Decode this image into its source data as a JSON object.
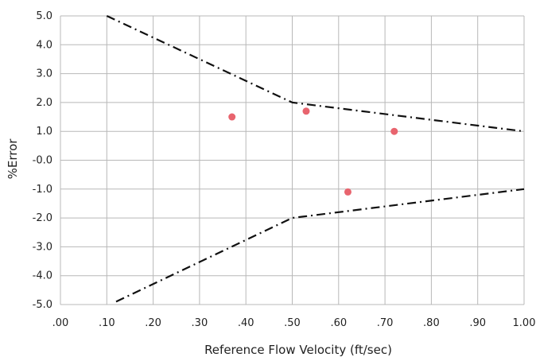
{
  "chart_data": {
    "type": "scatter",
    "title": "",
    "xlabel": "Reference Flow Velocity (ft/sec)",
    "ylabel": "%Error",
    "xlim": [
      0,
      1
    ],
    "ylim": [
      -5,
      5
    ],
    "grid": true,
    "x_ticks": [
      ".00",
      ".10",
      ".20",
      ".30",
      ".40",
      ".50",
      ".60",
      ".70",
      ".80",
      ".90",
      "1.00"
    ],
    "y_ticks": [
      "5.0",
      "4.0",
      "3.0",
      "2.0",
      "1.0",
      "-0.0",
      "-1.0",
      "-2.0",
      "-3.0",
      "-4.0",
      "-5.0"
    ],
    "series": [
      {
        "kind": "points",
        "color": "#e8646e",
        "points": [
          {
            "x": 0.37,
            "y": 1.5
          },
          {
            "x": 0.53,
            "y": 1.7
          },
          {
            "x": 0.62,
            "y": -1.1
          },
          {
            "x": 0.72,
            "y": 1.0
          }
        ]
      },
      {
        "kind": "limit-line",
        "style": "dash-dot",
        "color": "#111111",
        "points": [
          {
            "x": 0.1,
            "y": 5.0
          },
          {
            "x": 0.5,
            "y": 2.0
          },
          {
            "x": 1.0,
            "y": 1.0
          }
        ]
      },
      {
        "kind": "limit-line",
        "style": "dash-dot",
        "color": "#111111",
        "points": [
          {
            "x": 0.12,
            "y": -4.9
          },
          {
            "x": 0.5,
            "y": -2.0
          },
          {
            "x": 1.0,
            "y": -1.0
          }
        ]
      }
    ]
  }
}
